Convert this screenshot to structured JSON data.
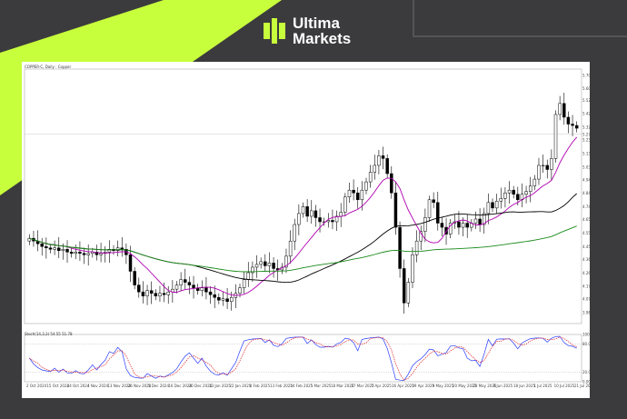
{
  "brand": {
    "line1": "Ultima",
    "line2": "Markets",
    "accent": "#c8ff3c"
  },
  "chart_data": {
    "type": "candlestick",
    "symbol_label": "COPPER-C, Daily : Copper",
    "indicator_label": "Stoch(14,3,3) 54.55 51.78",
    "ylim": [
      3.9,
      5.75
    ],
    "y_ticks": [
      "5.7045",
      "5.6090",
      "5.5230",
      "5.4250",
      "5.3270",
      "5.2340",
      "5.1355",
      "5.0370",
      "4.9440",
      "4.8465",
      "4.7485",
      "4.6550",
      "4.5575",
      "4.4595",
      "4.3665",
      "4.2675",
      "4.1705",
      "4.0775",
      "3.9800"
    ],
    "current_price": "5.2758",
    "stoch_ticks": [
      "100.00",
      "80.00",
      "20.00",
      "0.00"
    ],
    "x_labels": [
      "2 Oct 2024",
      "15 Oct 2024",
      "24 Oct 2024",
      "4 Nov 2024",
      "13 Nov 2024",
      "26 Nov 2024",
      "5 Dec 2024",
      "16 Dec 2024",
      "30 Dec 2024",
      "13 Jan 2025",
      "22 Jan 2025",
      "4 Feb 2025",
      "13 Feb 2025",
      "24 Feb 2025",
      "5 Mar 2025",
      "18 Mar 2025",
      "27 Mar 2025",
      "7 Apr 2025",
      "16 Apr 2025",
      "29 Apr 2025",
      "9 May 2025",
      "20 May 2025",
      "29 May 2025",
      "9 Jun 2025",
      "18 Jun 2025",
      "1 Jul 2025",
      "10 Jul 2025",
      "21 Jul 2025"
    ],
    "close": [
      4.52,
      4.5,
      4.48,
      4.46,
      4.45,
      4.44,
      4.45,
      4.43,
      4.44,
      4.42,
      4.41,
      4.42,
      4.41,
      4.4,
      4.41,
      4.42,
      4.4,
      4.41,
      4.42,
      4.44,
      4.43,
      4.45,
      4.44,
      4.4,
      4.28,
      4.18,
      4.13,
      4.1,
      4.14,
      4.12,
      4.1,
      4.12,
      4.11,
      4.13,
      4.15,
      4.18,
      4.22,
      4.2,
      4.18,
      4.16,
      4.14,
      4.16,
      4.13,
      4.11,
      4.09,
      4.07,
      4.08,
      4.06,
      4.09,
      4.12,
      4.16,
      4.22,
      4.27,
      4.31,
      4.33,
      4.35,
      4.32,
      4.34,
      4.3,
      4.29,
      4.31,
      4.39,
      4.5,
      4.62,
      4.7,
      4.75,
      4.68,
      4.72,
      4.67,
      4.64,
      4.64,
      4.65,
      4.64,
      4.68,
      4.71,
      4.82,
      4.87,
      4.85,
      4.8,
      4.87,
      4.93,
      5.0,
      5.05,
      5.12,
      5.1,
      4.99,
      4.85,
      4.6,
      4.3,
      4.05,
      4.2,
      4.4,
      4.5,
      4.57,
      4.67,
      4.8,
      4.78,
      4.63,
      4.6,
      4.55,
      4.63,
      4.64,
      4.6,
      4.63,
      4.6,
      4.63,
      4.66,
      4.62,
      4.7,
      4.78,
      4.74,
      4.79,
      4.81,
      4.85,
      4.87,
      4.84,
      4.8,
      4.84,
      4.86,
      4.9,
      4.95,
      5.05,
      5.05,
      5.02,
      5.1,
      5.42,
      5.5,
      5.4,
      5.35,
      5.34,
      5.32
    ]
  }
}
